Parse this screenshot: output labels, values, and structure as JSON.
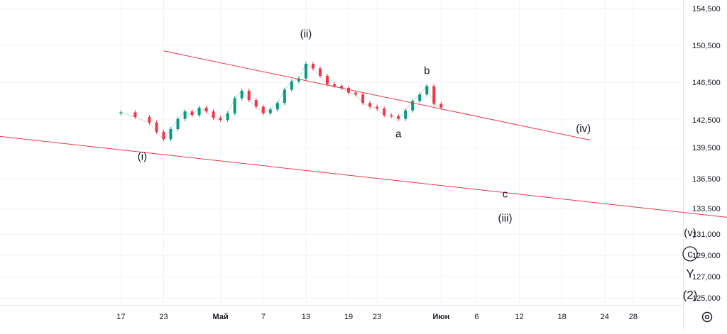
{
  "chart_data": {
    "type": "candlestick",
    "x_axis": {
      "tick_labels": [
        "17",
        "23",
        "Май",
        "7",
        "13",
        "19",
        "23",
        "Июн",
        "6",
        "12",
        "18",
        "24",
        "28"
      ],
      "tick_days": [
        -14,
        -8,
        0,
        6,
        12,
        18,
        22,
        31,
        36,
        42,
        48,
        54,
        58
      ],
      "range_days": [
        -31,
        65
      ]
    },
    "y_axis": {
      "position": "right",
      "tick_labels": [
        "154,500",
        "150,500",
        "146,500",
        "142,500",
        "139,500",
        "136,500",
        "133,500",
        "131,000",
        "129,000",
        "127,000",
        "125,000"
      ],
      "ticks": [
        154500,
        150500,
        146500,
        142500,
        139500,
        136500,
        133500,
        131000,
        129000,
        127000,
        125000
      ]
    },
    "series": [
      {
        "points": [
          {
            "d": -14,
            "c": 143300
          },
          {
            "d": -12,
            "c": 142800
          },
          {
            "d": -10,
            "c": 142200
          },
          {
            "d": -9,
            "c": 141200
          },
          {
            "d": -8,
            "c": 140400
          },
          {
            "d": -7,
            "c": 141500
          },
          {
            "d": -6,
            "c": 142600
          },
          {
            "d": -5,
            "c": 143400
          },
          {
            "d": -4,
            "c": 143000
          },
          {
            "d": -3,
            "c": 143800
          },
          {
            "d": -2,
            "c": 143400
          },
          {
            "d": -1,
            "c": 142700
          },
          {
            "d": 0,
            "c": 142500
          },
          {
            "d": 1,
            "c": 143200
          },
          {
            "d": 2,
            "c": 144800
          },
          {
            "d": 3,
            "c": 145600
          },
          {
            "d": 4,
            "c": 144600
          },
          {
            "d": 5,
            "c": 143900
          },
          {
            "d": 6,
            "c": 143200
          },
          {
            "d": 7,
            "c": 143600
          },
          {
            "d": 8,
            "c": 144300
          },
          {
            "d": 9,
            "c": 145700
          },
          {
            "d": 10,
            "c": 146600
          },
          {
            "d": 11,
            "c": 146900
          },
          {
            "d": 12,
            "c": 148500
          },
          {
            "d": 13,
            "c": 148000
          },
          {
            "d": 14,
            "c": 147200
          },
          {
            "d": 15,
            "c": 146300
          },
          {
            "d": 16,
            "c": 146100
          },
          {
            "d": 17,
            "c": 145900
          },
          {
            "d": 18,
            "c": 145400
          },
          {
            "d": 19,
            "c": 145200
          },
          {
            "d": 20,
            "c": 144300
          },
          {
            "d": 21,
            "c": 143900
          },
          {
            "d": 22,
            "c": 143700
          },
          {
            "d": 23,
            "c": 143000
          },
          {
            "d": 24,
            "c": 142900
          },
          {
            "d": 25,
            "c": 142600
          },
          {
            "d": 26,
            "c": 143500
          },
          {
            "d": 27,
            "c": 144500
          },
          {
            "d": 28,
            "c": 145200
          },
          {
            "d": 29,
            "c": 146100
          },
          {
            "d": 30,
            "c": 144200
          },
          {
            "d": 31,
            "c": 143800
          }
        ]
      }
    ],
    "trendlines": [
      {
        "from": {
          "d": -8,
          "v": 149900
        },
        "to": {
          "d": 52,
          "v": 140300
        },
        "color": "#f23645"
      },
      {
        "from": {
          "d": -31,
          "v": 140700
        },
        "to": {
          "d": 82,
          "v": 131800
        },
        "color": "#f23645"
      }
    ],
    "annotations": [
      {
        "text": "(i)",
        "d": -11,
        "v": 138300
      },
      {
        "text": "(ii)",
        "d": 12,
        "v": 151400
      },
      {
        "text": "b",
        "d": 29,
        "v": 147400
      },
      {
        "text": "a",
        "d": 25,
        "v": 140600
      },
      {
        "text": "(iv)",
        "d": 51,
        "v": 141200
      },
      {
        "text": "c",
        "d": 40,
        "v": 134600
      },
      {
        "text": "(iii)",
        "d": 40,
        "v": 132200
      },
      {
        "text": "(v)",
        "d": 66,
        "v": 130800
      },
      {
        "text": "c",
        "d": 66,
        "v": 128800,
        "circled": true
      },
      {
        "text": "Y",
        "d": 66,
        "v": 126900
      },
      {
        "text": "(2)",
        "d": 66,
        "v": 124900
      }
    ],
    "grid": true
  },
  "ui": {
    "settings_icon": "settings-icon"
  }
}
